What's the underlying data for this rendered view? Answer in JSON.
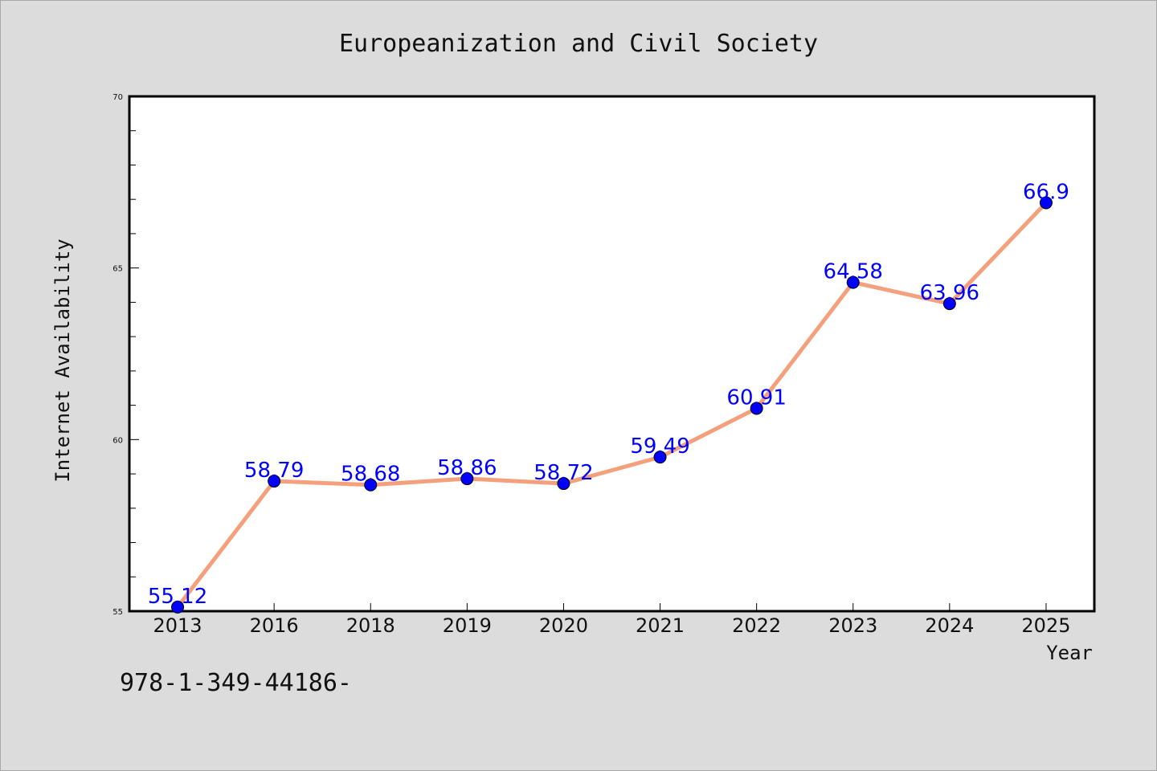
{
  "chart_data": {
    "type": "line",
    "title": "Europeanization and Civil Society",
    "xlabel": "Year",
    "ylabel": "Internet Availability",
    "categories": [
      "2013",
      "2016",
      "2018",
      "2019",
      "2020",
      "2021",
      "2022",
      "2023",
      "2024",
      "2025"
    ],
    "values": [
      55.12,
      58.79,
      58.68,
      58.86,
      58.72,
      59.49,
      60.91,
      64.58,
      63.96,
      66.9
    ],
    "data_labels": [
      "55.12",
      "58.79",
      "58.68",
      "58.86",
      "58.72",
      "59.49",
      "60.91",
      "64.58",
      "63.96",
      "66.9"
    ],
    "ylim": [
      55,
      70
    ],
    "yticks": [
      "55",
      "60",
      "65",
      "70"
    ],
    "grid": false,
    "legend": "none"
  },
  "colors": {
    "background": "#dcdcdc",
    "plot_background": "#ffffff",
    "line": "#f4a07c",
    "marker": "#0000ff",
    "data_label": "#0000ff"
  },
  "footnote": "978-1-349-44186-"
}
